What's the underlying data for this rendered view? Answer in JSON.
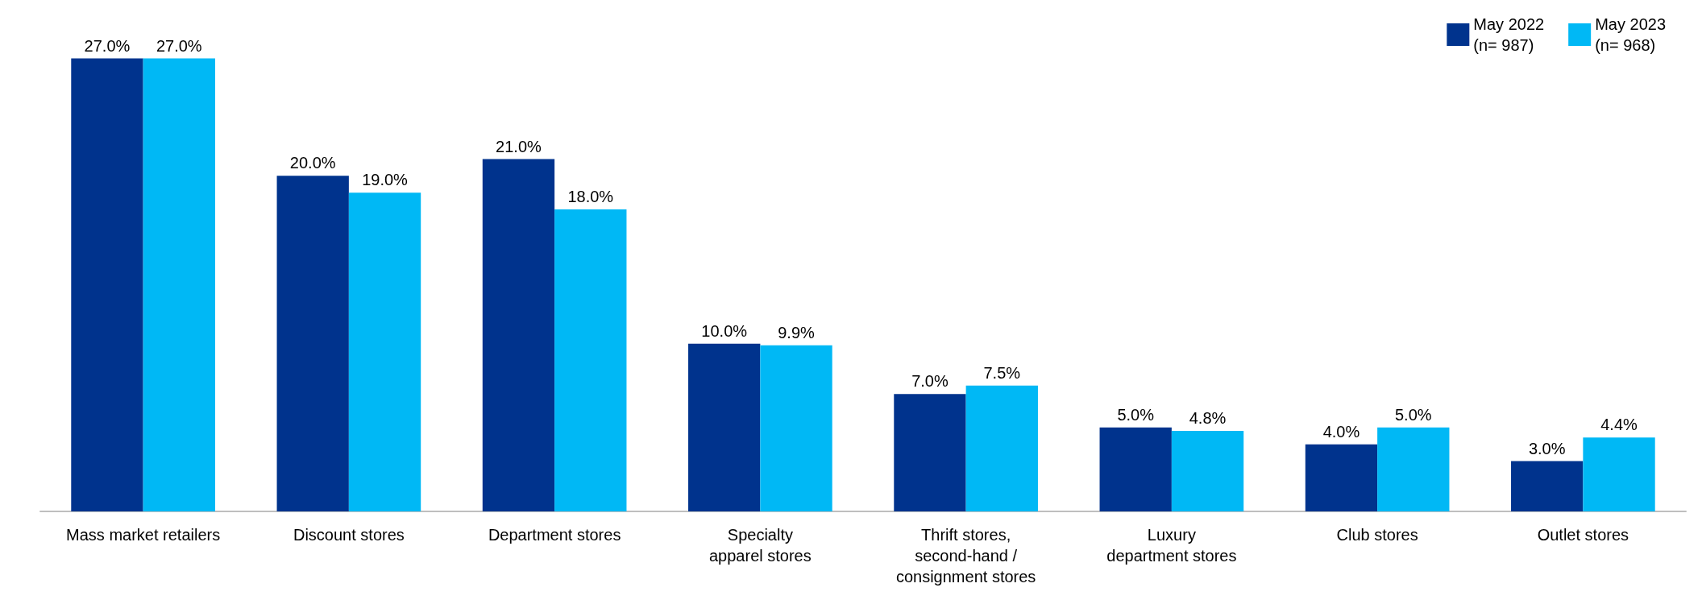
{
  "chart_data": {
    "type": "bar",
    "categories": [
      "Mass market retailers",
      "Discount stores",
      "Department stores",
      "Specialty\napparel stores",
      "Thrift stores,\nsecond-hand /\nconsignment stores",
      "Luxury\ndepartment stores",
      "Club stores",
      "Outlet stores"
    ],
    "series": [
      {
        "name": "May 2022\n(n= 987)",
        "color": "#00338d",
        "values": [
          27.0,
          20.0,
          21.0,
          10.0,
          7.0,
          5.0,
          4.0,
          3.0
        ],
        "value_labels": [
          "27.0%",
          "20.0%",
          "21.0%",
          "10.0%",
          "7.0%",
          "5.0%",
          "4.0%",
          "3.0%"
        ]
      },
      {
        "name": "May 2023\n(n= 968)",
        "color": "#00b8f5",
        "values": [
          27.0,
          19.0,
          18.0,
          9.9,
          7.5,
          4.8,
          5.0,
          4.4
        ],
        "value_labels": [
          "27.0%",
          "19.0%",
          "18.0%",
          "9.9%",
          "7.5%",
          "4.8%",
          "5.0%",
          "4.4%"
        ]
      }
    ],
    "legend": "top right"
  }
}
